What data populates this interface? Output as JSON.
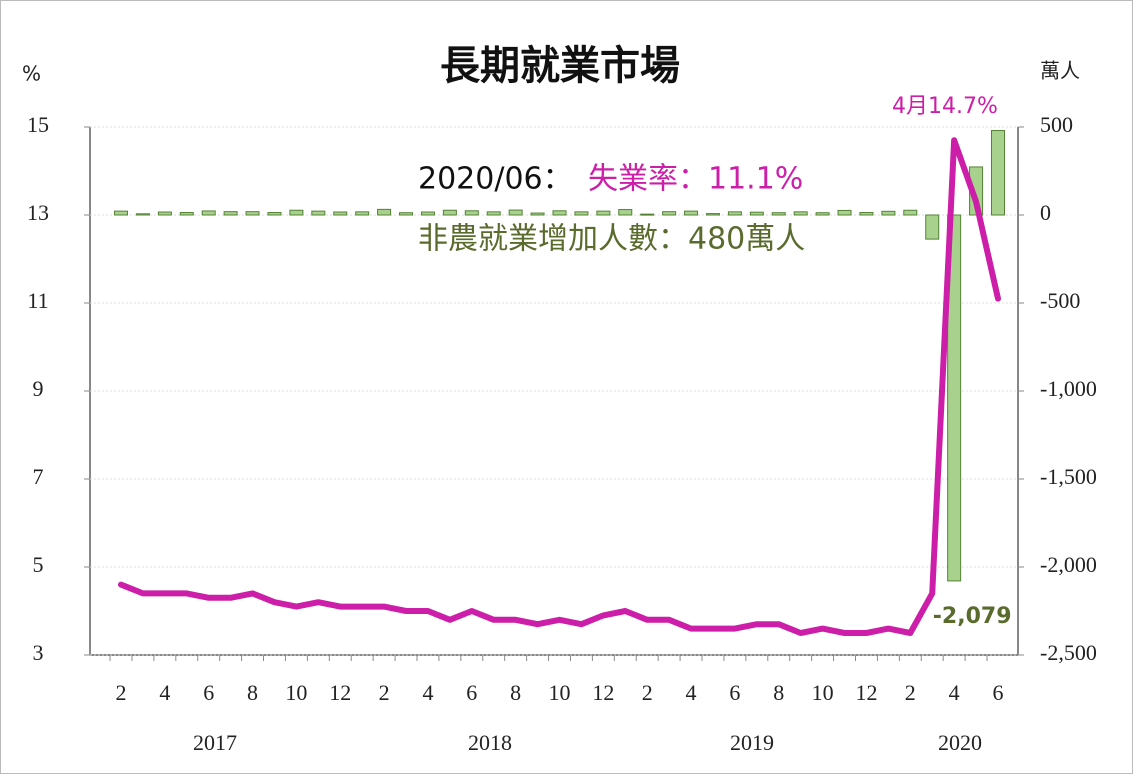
{
  "chart_data": {
    "type": "bar_line",
    "title": "長期就業市場",
    "y_label": "%",
    "y2_label": "萬人",
    "categories": [
      "2",
      null,
      "4",
      null,
      "6",
      null,
      "8",
      null,
      "10",
      null,
      "12",
      null,
      "2",
      null,
      "4",
      null,
      "6",
      null,
      "8",
      null,
      "10",
      null,
      "12",
      null,
      "2",
      null,
      "4",
      null,
      "6",
      null,
      "8",
      null,
      "10",
      null,
      "12",
      null,
      "2",
      null,
      "4",
      null,
      "6"
    ],
    "year_labels": [
      "2017",
      "2018",
      "2019",
      "2020"
    ],
    "ylim": [
      3,
      15
    ],
    "yticks": [
      3,
      5,
      7,
      9,
      11,
      13,
      15
    ],
    "y2lim": [
      -2500,
      500
    ],
    "y2ticks": [
      {
        "value": -2500,
        "label": "-2,500"
      },
      {
        "value": -2000,
        "label": "-2,000"
      },
      {
        "value": -1500,
        "label": "-1,500"
      },
      {
        "value": -1000,
        "label": "-1,000"
      },
      -500,
      0,
      500
    ],
    "series": [
      {
        "name": "非農就業增加人數",
        "type": "bar",
        "axis": "y2",
        "color": "#a9d18e",
        "values": [
          22,
          7,
          17,
          14,
          23,
          19,
          19,
          14,
          27,
          22,
          17,
          18,
          32,
          13,
          17,
          27,
          24,
          18,
          28,
          11,
          24,
          18,
          22,
          31,
          5,
          19,
          22,
          8,
          18,
          16,
          13,
          18,
          13,
          26,
          14,
          21,
          27,
          -137,
          -2079,
          273,
          480
        ],
        "value_labels": [
          null,
          null,
          null,
          null,
          null,
          null,
          null,
          null,
          null,
          null,
          null,
          null,
          null,
          null,
          null,
          null,
          null,
          null,
          null,
          null,
          null,
          null,
          null,
          null,
          null,
          null,
          null,
          null,
          null,
          null,
          null,
          null,
          null,
          null,
          null,
          null,
          null,
          null,
          "-2,079",
          null,
          null
        ]
      },
      {
        "name": "失業率",
        "type": "line",
        "axis": "y",
        "color": "#cc1ea8",
        "values": [
          4.6,
          4.4,
          4.4,
          4.4,
          4.3,
          4.3,
          4.4,
          4.2,
          4.1,
          4.2,
          4.1,
          4.1,
          4.1,
          4.0,
          4.0,
          3.8,
          4.0,
          3.8,
          3.8,
          3.7,
          3.8,
          3.7,
          3.9,
          4.0,
          3.8,
          3.8,
          3.6,
          3.6,
          3.6,
          3.7,
          3.7,
          3.5,
          3.6,
          3.5,
          3.5,
          3.6,
          3.5,
          4.4,
          14.7,
          13.3,
          11.1
        ]
      }
    ],
    "annotations": {
      "date": "2020/06：",
      "rate": "失業率：11.1%",
      "payroll": "非農就業增加人數：480萬人",
      "peak": "4月14.7%"
    }
  }
}
